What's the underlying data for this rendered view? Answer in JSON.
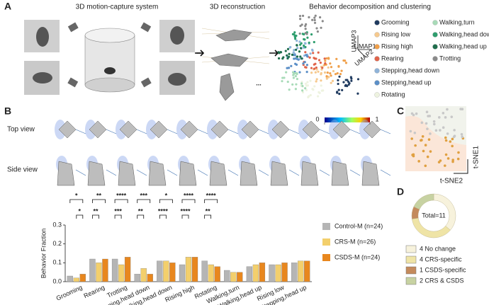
{
  "labels": {
    "a": "A",
    "b": "B",
    "c": "C",
    "d": "D"
  },
  "panel_a": {
    "titles": [
      "3D motion-capture system",
      "3D reconstruction",
      "Behavior decomposition and clustering"
    ],
    "ellipsis": "...",
    "umap": [
      "UMAP1",
      "UMAP2",
      "UMAP3"
    ],
    "legend": [
      {
        "name": "Grooming",
        "color": "#1f3a5f"
      },
      {
        "name": "Rising low",
        "color": "#f6c98e"
      },
      {
        "name": "Rising high",
        "color": "#f0a04b"
      },
      {
        "name": "Rearing",
        "color": "#e0634a"
      },
      {
        "name": "Stepping,head down",
        "color": "#8fb3d9"
      },
      {
        "name": "Stepping,head up",
        "color": "#5b8fc7"
      },
      {
        "name": "Rotating",
        "color": "#eef3e0"
      },
      {
        "name": "Walking,turn",
        "color": "#a8dbb8"
      },
      {
        "name": "Walking,head down",
        "color": "#2f9e6e"
      },
      {
        "name": "Walking,head up",
        "color": "#1f6e4d"
      },
      {
        "name": "Trotting",
        "color": "#8a8a8a"
      }
    ]
  },
  "panel_b": {
    "rows": [
      "Top view",
      "Side view"
    ],
    "colorbar": [
      0,
      1
    ]
  },
  "panel_c": {
    "axes": [
      "t-SNE1",
      "t-SNE2"
    ]
  },
  "chart_data": [
    {
      "type": "bar",
      "ylabel": "Behavior Fraction",
      "categories": [
        "Grooming",
        "Rearing",
        "Trotting",
        "Stepping,head down",
        "Walking,head down",
        "Rising high",
        "Rotating",
        "Walking,turn",
        "Walking,head up",
        "Rising low",
        "Stepping,head up"
      ],
      "series": [
        {
          "name": "Control-M (n=24)",
          "color": "#b5b5b5",
          "values": [
            0.03,
            0.12,
            0.12,
            0.04,
            0.11,
            0.09,
            0.11,
            0.06,
            0.08,
            0.09,
            0.1
          ]
        },
        {
          "name": "CRS-M (n=26)",
          "color": "#f3cf6c",
          "values": [
            0.02,
            0.1,
            0.09,
            0.07,
            0.11,
            0.13,
            0.09,
            0.05,
            0.09,
            0.09,
            0.11
          ]
        },
        {
          "name": "CSDS-M (n=24)",
          "color": "#e8871e",
          "values": [
            0.04,
            0.12,
            0.13,
            0.04,
            0.1,
            0.13,
            0.08,
            0.05,
            0.1,
            0.1,
            0.11
          ]
        }
      ],
      "ylim": [
        0,
        0.3
      ],
      "yticks": [
        {
          "value": 0,
          "label": "0.0"
        },
        0.1,
        0.2,
        0.3
      ],
      "legend": "right",
      "significance": [
        {
          "category": 0,
          "series": [
            0,
            2
          ],
          "label": "*"
        },
        {
          "category": 0,
          "series": [
            1,
            2
          ],
          "label": "*"
        },
        {
          "category": 1,
          "series": [
            0,
            2
          ],
          "label": "**"
        },
        {
          "category": 1,
          "series": [
            0,
            1
          ],
          "label": "**"
        },
        {
          "category": 2,
          "series": [
            0,
            2
          ],
          "label": "****"
        },
        {
          "category": 2,
          "series": [
            0,
            1
          ],
          "label": "***"
        },
        {
          "category": 3,
          "series": [
            0,
            2
          ],
          "label": "***"
        },
        {
          "category": 3,
          "series": [
            0,
            1
          ],
          "label": "**"
        },
        {
          "category": 4,
          "series": [
            0,
            2
          ],
          "label": "*"
        },
        {
          "category": 4,
          "series": [
            0,
            1
          ],
          "label": "****"
        },
        {
          "category": 5,
          "series": [
            0,
            2
          ],
          "label": "****"
        },
        {
          "category": 5,
          "series": [
            0,
            1
          ],
          "label": "****"
        },
        {
          "category": 6,
          "series": [
            0,
            2
          ],
          "label": "****"
        },
        {
          "category": 6,
          "series": [
            0,
            1
          ],
          "label": "**"
        }
      ]
    },
    {
      "type": "pie",
      "donut": true,
      "center_label": "Total=11",
      "labels": [
        "4 No change",
        "4 CRS-specific",
        "1 CSDS-specific",
        "2 CRS & CSDS"
      ],
      "values": [
        4,
        4,
        1,
        2
      ],
      "colors": [
        "#f7f2dc",
        "#efe4a6",
        "#c48a5c",
        "#c7d2a2"
      ]
    }
  ]
}
